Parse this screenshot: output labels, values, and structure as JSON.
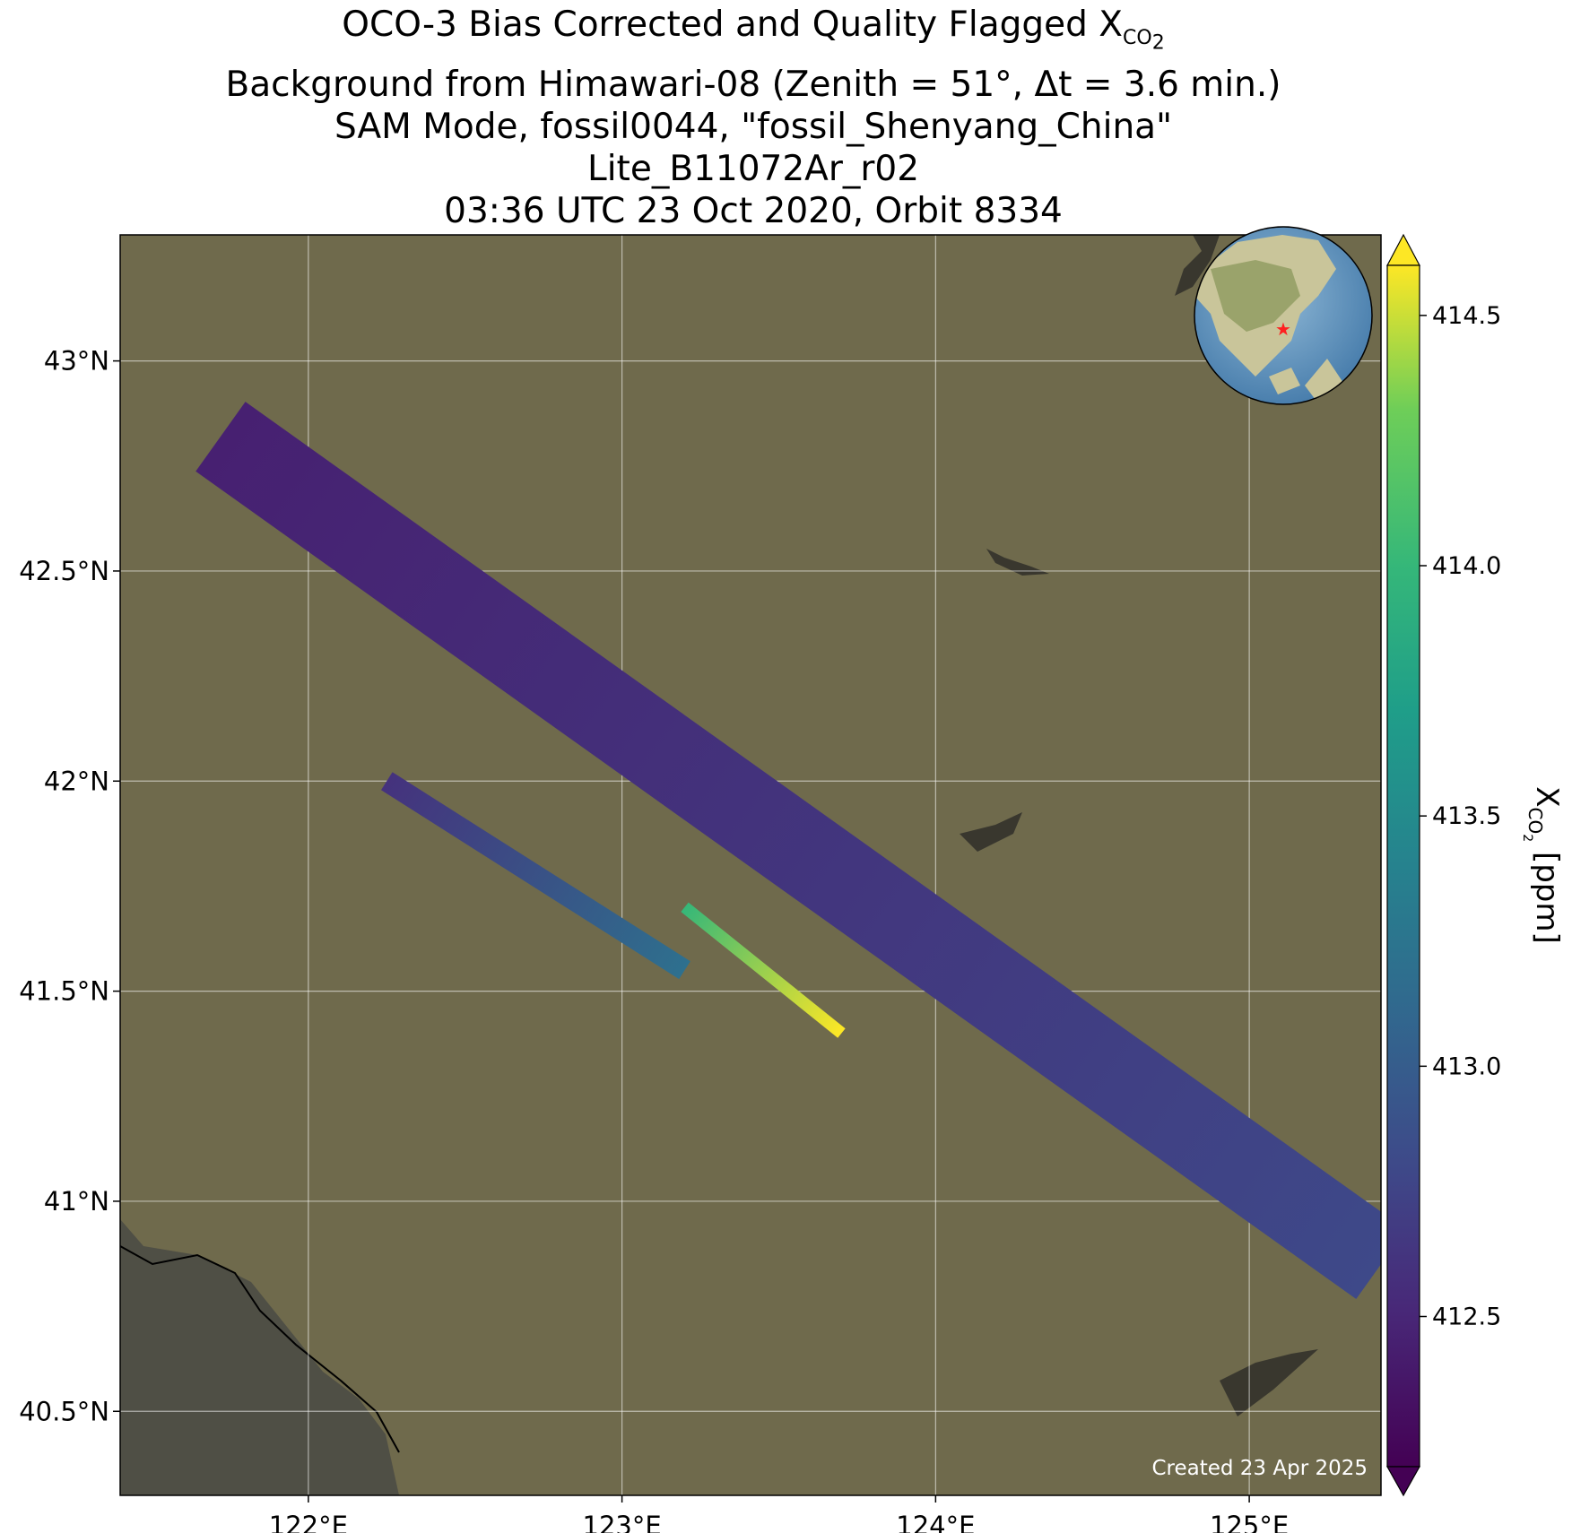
{
  "title": {
    "line1_pre": "OCO-3 Bias Corrected and Quality Flagged X",
    "line1_sub": "CO",
    "line1_sub2": "2",
    "line2": "Background from Himawari-08 (Zenith = 51°, Δt =  3.6 min.)",
    "line3": "SAM Mode, fossil0044, \"fossil_Shenyang_China\"",
    "line4": "Lite_B11072Ar_r02",
    "line5": "03:36 UTC 23 Oct 2020, Orbit 8334"
  },
  "map": {
    "lon_range": [
      121.4,
      125.42
    ],
    "lat_range": [
      40.3,
      43.3
    ],
    "lon_ticks": [
      122,
      123,
      124,
      125
    ],
    "lon_tick_labels": [
      "122°E",
      "123°E",
      "124°E",
      "125°E"
    ],
    "lat_ticks": [
      43.0,
      42.5,
      42.0,
      41.5,
      41.0,
      40.5
    ],
    "lat_tick_labels": [
      "43°N",
      "42.5°N",
      "42°N",
      "41.5°N",
      "41°N",
      "40.5°N"
    ],
    "grid": true,
    "credit": "Created 23 Apr 2025",
    "inset": "globe-locator",
    "background_color": "#6f6a4c"
  },
  "swaths": [
    {
      "name": "",
      "lon_start": 121.72,
      "lat_start": 42.82,
      "lon_end": 125.42,
      "lat_end": 40.85,
      "value_start": 412.45,
      "value_end": 412.8
    },
    {
      "name": "",
      "lon_start": 122.25,
      "lat_start": 42.0,
      "lon_end": 123.2,
      "lat_end": 41.55,
      "value_start": 412.6,
      "value_end": 413.2
    },
    {
      "name": "",
      "lon_start": 123.2,
      "lat_start": 41.7,
      "lon_end": 123.7,
      "lat_end": 41.4,
      "value_start": 414.0,
      "value_end": 414.6
    }
  ],
  "colorbar": {
    "cmap": "viridis",
    "min": 412.2,
    "max": 414.6,
    "extend": "both",
    "ticks": [
      412.5,
      413.0,
      413.5,
      414.0,
      414.5
    ],
    "tick_labels": [
      "412.5",
      "413.0",
      "413.5",
      "414.0",
      "414.5"
    ],
    "label_pre": "X",
    "label_sub": "CO",
    "label_sub2": "2",
    "label_post": " [ppm]"
  }
}
